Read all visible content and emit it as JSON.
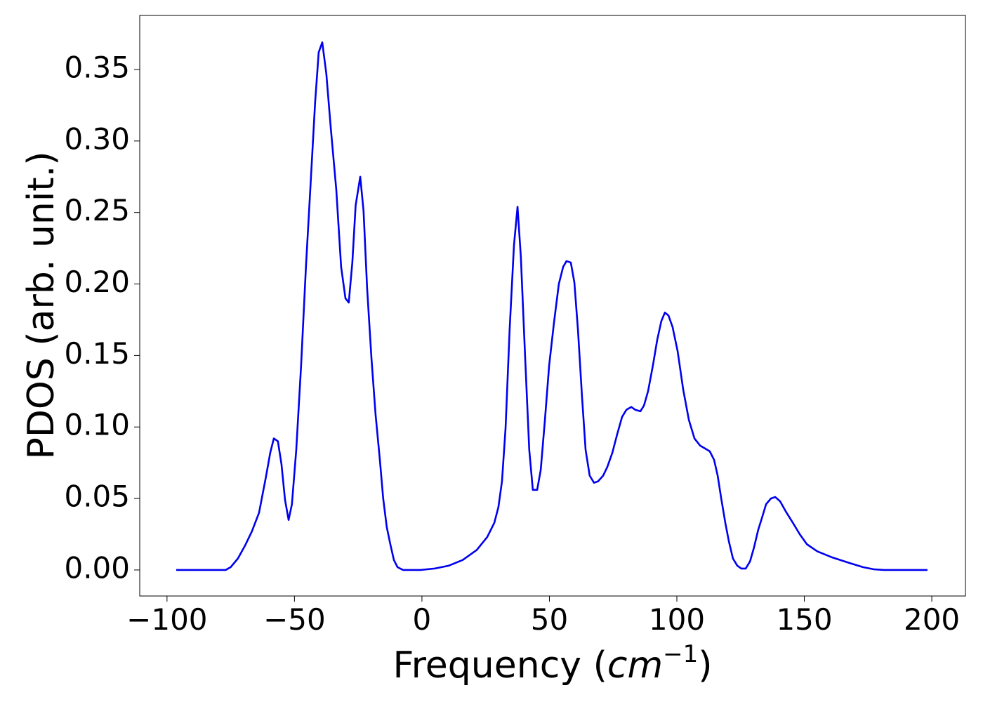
{
  "chart_data": {
    "type": "line",
    "xlabel_parts": [
      "Frequency (",
      "cm",
      "−1",
      ")"
    ],
    "ylabel": "PDOS (arb. unit.)",
    "xlim": [
      -110.7,
      213.2
    ],
    "ylim": [
      -0.0182,
      0.3878
    ],
    "xticks": [
      {
        "value": -100,
        "label": "−100"
      },
      {
        "value": -50,
        "label": "−50"
      },
      0,
      50,
      100,
      150,
      200
    ],
    "yticks": [
      {
        "value": 0,
        "label": "0.00"
      },
      {
        "value": 0.05,
        "label": "0.05"
      },
      {
        "value": 0.1,
        "label": "0.10"
      },
      {
        "value": 0.15,
        "label": "0.15"
      },
      {
        "value": 0.2,
        "label": "0.20"
      },
      {
        "value": 0.25,
        "label": "0.25"
      },
      {
        "value": 0.3,
        "label": "0.30"
      },
      {
        "value": 0.35,
        "label": "0.35"
      }
    ],
    "grid": false,
    "color": "#0000ee",
    "x": [
      -96.4,
      -77,
      -75,
      -72.2,
      -69.4,
      -66.7,
      -63.9,
      -62.5,
      -61.2,
      -59.5,
      -58.1,
      -56.5,
      -55.1,
      -53.7,
      -52.3,
      -51.0,
      -49.3,
      -47.4,
      -45.5,
      -43.8,
      -41.9,
      -40.5,
      -39.1,
      -37.5,
      -35.8,
      -33.6,
      -31.7,
      -30.0,
      -28.7,
      -27.3,
      -26.0,
      -24.2,
      -22.9,
      -21.5,
      -19.8,
      -18.2,
      -16.5,
      -15.2,
      -13.8,
      -12.4,
      -11.0,
      -9.6,
      -7.4,
      -0.6,
      5,
      10.5,
      16,
      21.5,
      25.6,
      28.4,
      30.0,
      31.4,
      32.8,
      34.4,
      36.1,
      37.5,
      38.8,
      40.5,
      42.1,
      43.5,
      45.2,
      46.6,
      48.2,
      49.9,
      51.8,
      53.7,
      55.4,
      56.7,
      58.4,
      59.8,
      61.2,
      62.8,
      64.2,
      65.8,
      67.5,
      69.1,
      71.1,
      72.7,
      74.7,
      76.6,
      78.5,
      80.2,
      82.1,
      83.7,
      85.7,
      87.1,
      88.7,
      90.6,
      92.3,
      93.9,
      95.3,
      96.7,
      98.3,
      100.3,
      102.5,
      104.7,
      106.9,
      109.1,
      111.0,
      112.9,
      114.6,
      116.0,
      117.4,
      119.0,
      120.4,
      122.0,
      123.7,
      125.3,
      127.0,
      128.7,
      130.3,
      131.9,
      133.3,
      135.0,
      136.9,
      138.6,
      140.5,
      142.7,
      145.5,
      148.2,
      151.0,
      155.1,
      160.6,
      167.5,
      173.0,
      177.1,
      181.3,
      198.3
    ],
    "values": [
      0,
      0,
      0.002,
      0.008,
      0.017,
      0.027,
      0.04,
      0.053,
      0.065,
      0.082,
      0.092,
      0.09,
      0.074,
      0.049,
      0.035,
      0.046,
      0.084,
      0.143,
      0.212,
      0.266,
      0.327,
      0.362,
      0.369,
      0.347,
      0.31,
      0.266,
      0.212,
      0.19,
      0.187,
      0.215,
      0.255,
      0.275,
      0.251,
      0.197,
      0.148,
      0.109,
      0.077,
      0.05,
      0.03,
      0.018,
      0.007,
      0.002,
      0,
      0,
      0.001,
      0.003,
      0.007,
      0.014,
      0.023,
      0.033,
      0.044,
      0.062,
      0.099,
      0.168,
      0.227,
      0.254,
      0.219,
      0.148,
      0.084,
      0.056,
      0.056,
      0.07,
      0.104,
      0.143,
      0.173,
      0.2,
      0.212,
      0.216,
      0.215,
      0.201,
      0.168,
      0.121,
      0.084,
      0.066,
      0.061,
      0.062,
      0.066,
      0.072,
      0.082,
      0.095,
      0.107,
      0.112,
      0.114,
      0.112,
      0.111,
      0.115,
      0.125,
      0.143,
      0.161,
      0.174,
      0.18,
      0.178,
      0.17,
      0.153,
      0.126,
      0.105,
      0.092,
      0.087,
      0.085,
      0.083,
      0.077,
      0.066,
      0.05,
      0.033,
      0.02,
      0.008,
      0.003,
      0.001,
      0.001,
      0.006,
      0.016,
      0.028,
      0.036,
      0.046,
      0.05,
      0.051,
      0.048,
      0.041,
      0.033,
      0.025,
      0.018,
      0.013,
      0.009,
      0.005,
      0.002,
      0.0005,
      0,
      0
    ]
  }
}
